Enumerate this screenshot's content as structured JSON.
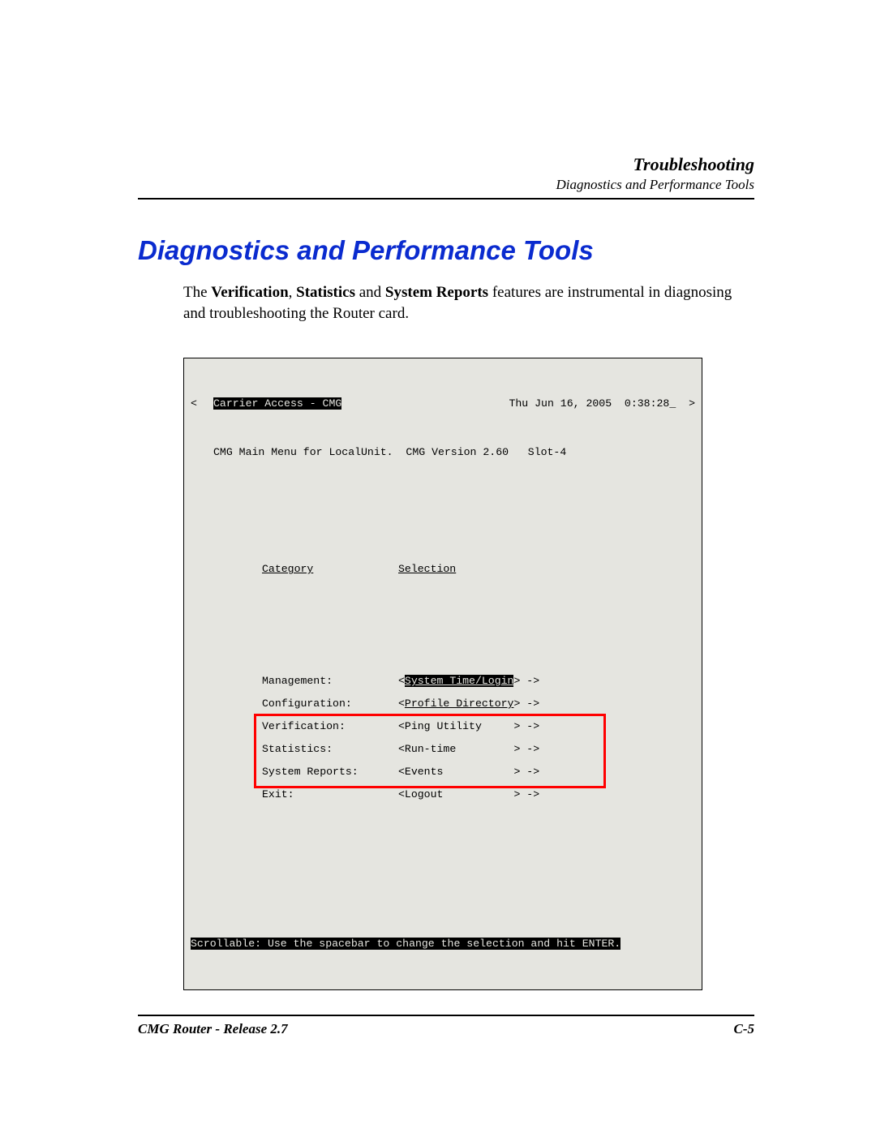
{
  "header": {
    "chapter": "Troubleshooting",
    "subchapter": "Diagnostics and Performance Tools"
  },
  "title": "Diagnostics and Performance Tools",
  "paragraph": {
    "pre": "The ",
    "b1": "Verification",
    "sep1": ", ",
    "b2": "Statistics",
    "sep2": " and ",
    "b3": "System Reports",
    "post": " features are instrumental in diagnosing and troubleshooting the Router card."
  },
  "terminal": {
    "bg_color": "#e5e5e0",
    "border_color": "#000000",
    "font": "Courier New",
    "left_angle": "<",
    "app_title": "Carrier Access - CMG",
    "timestamp": "Thu Jun 16, 2005  0:38:28_",
    "right_angle": ">",
    "subtitle": "CMG Main Menu for LocalUnit.  CMG Version 2.60   Slot-4",
    "col_category": "Category",
    "col_selection": "Selection",
    "rows": [
      {
        "cat": "Management:",
        "sel_pre": "<",
        "sel_label": "System Time/Login",
        "sel_post": "> ->",
        "inv_label": true,
        "uline_label": true,
        "highlighted": false
      },
      {
        "cat": "Configuration:",
        "sel_pre": "<",
        "sel_label": "Profile Directory",
        "sel_post": "> ->",
        "inv_label": false,
        "uline_label": true,
        "highlighted": false
      },
      {
        "cat": "Verification:",
        "sel_pre": "<",
        "sel_label": "Ping Utility     ",
        "sel_post": "> ->",
        "inv_label": false,
        "uline_label": false,
        "highlighted": true
      },
      {
        "cat": "Statistics:",
        "sel_pre": "<",
        "sel_label": "Run-time         ",
        "sel_post": "> ->",
        "inv_label": false,
        "uline_label": false,
        "highlighted": true
      },
      {
        "cat": "System Reports:",
        "sel_pre": "<",
        "sel_label": "Events           ",
        "sel_post": "> ->",
        "inv_label": false,
        "uline_label": false,
        "highlighted": true
      },
      {
        "cat": "Exit:",
        "sel_pre": "<",
        "sel_label": "Logout           ",
        "sel_post": "> ->",
        "inv_label": false,
        "uline_label": false,
        "highlighted": false
      }
    ],
    "highlight_color": "#ff0000",
    "statusbar": "Scrollable: Use the spacebar to change the selection and hit ENTER."
  },
  "footer": {
    "left": "CMG Router - Release 2.7",
    "right": "C-5"
  }
}
